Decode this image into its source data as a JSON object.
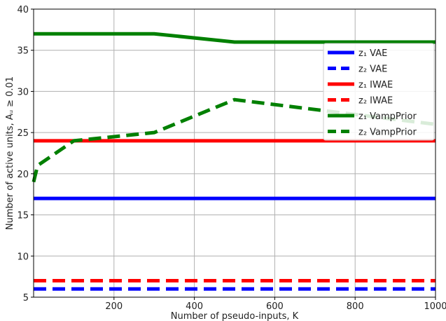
{
  "chart_data": {
    "type": "line",
    "xlabel": "Number of pseudo-inputs, K",
    "ylabel": "Number of active units, Aᵤ ≥ 0.01",
    "xlim": [
      0,
      1000
    ],
    "ylim": [
      5,
      40
    ],
    "xticks": [
      200,
      400,
      600,
      800,
      1000
    ],
    "yticks": [
      5,
      10,
      15,
      20,
      25,
      30,
      35,
      40
    ],
    "grid": true,
    "legend_position": "right",
    "series": [
      {
        "name": "z₁ VAE",
        "color": "#0000ff",
        "dash": false,
        "x": [
          0,
          1000
        ],
        "y": [
          17,
          17
        ]
      },
      {
        "name": "z₂ VAE",
        "color": "#0000ff",
        "dash": true,
        "x": [
          0,
          1000
        ],
        "y": [
          6,
          6
        ]
      },
      {
        "name": "z₁ IWAE",
        "color": "#ff0000",
        "dash": false,
        "x": [
          0,
          1000
        ],
        "y": [
          24,
          24
        ]
      },
      {
        "name": "z₂ IWAE",
        "color": "#ff0000",
        "dash": true,
        "x": [
          0,
          1000
        ],
        "y": [
          7,
          7
        ]
      },
      {
        "name": "z₁ VampPrior",
        "color": "#008000",
        "dash": false,
        "x": [
          0,
          100,
          300,
          500,
          1000
        ],
        "y": [
          37,
          37,
          37,
          36,
          36
        ]
      },
      {
        "name": "z₂ VampPrior",
        "color": "#008000",
        "dash": true,
        "x": [
          0,
          10,
          100,
          300,
          500,
          1000
        ],
        "y": [
          19,
          21,
          24,
          25,
          29,
          26
        ]
      }
    ]
  }
}
